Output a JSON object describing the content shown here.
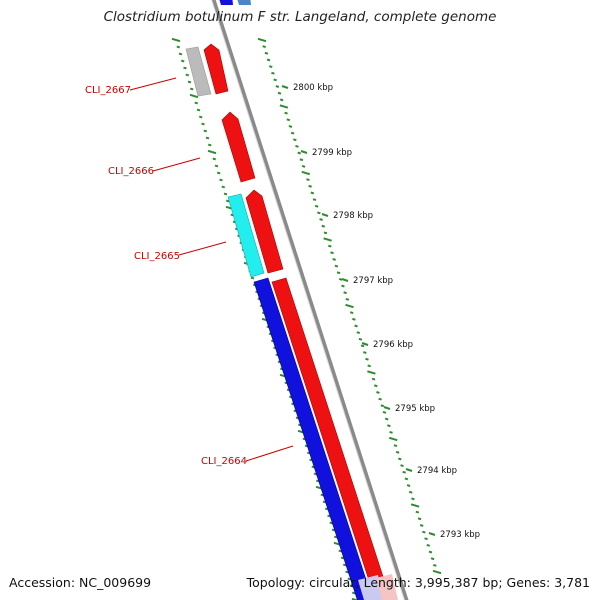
{
  "title": "Clostridium botulinum F str. Langeland, complete genome",
  "footer": {
    "accession": "Accession: NC_009699",
    "summary": "Topology: circular; Length: 3,995,387 bp; Genes: 3,781"
  },
  "colors": {
    "forward_gene": "#ee1111",
    "reverse_gene": "#1111dd",
    "cyan_gene": "#22eeee",
    "gray_gene": "#bbbbbb",
    "steel_gene": "#4a86c8",
    "backbone": "#8a8a8a",
    "ticks": "#2e8b2e",
    "label": "#cc0000"
  },
  "scale": {
    "unit": "kbp",
    "labels": [
      "2800 kbp",
      "2799 kbp",
      "2798 kbp",
      "2797 kbp",
      "2796 kbp",
      "2795 kbp",
      "2794 kbp",
      "2793 kbp"
    ]
  },
  "genes": [
    {
      "locus": "CLI_2667",
      "strand": "reverse",
      "color": "gray",
      "labeled": true
    },
    {
      "locus": "CLI_2666",
      "strand": "forward",
      "color": "red",
      "labeled": true
    },
    {
      "locus": "CLI_2665",
      "strand": "reverse",
      "color": "cyan",
      "labeled": true
    },
    {
      "locus": "CLI_2664",
      "strand": "reverse",
      "color": "blue",
      "labeled": true
    }
  ]
}
